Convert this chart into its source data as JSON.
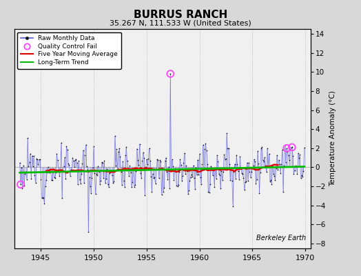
{
  "title": "BURRUS RANCH",
  "subtitle": "35.267 N, 111.533 W (United States)",
  "ylabel": "Temperature Anomaly (°C)",
  "watermark": "Berkeley Earth",
  "xlim": [
    1942.5,
    1970.5
  ],
  "ylim": [
    -8.5,
    14.5
  ],
  "yticks": [
    -8,
    -6,
    -4,
    -2,
    0,
    2,
    4,
    6,
    8,
    10,
    12,
    14
  ],
  "xticks": [
    1945,
    1950,
    1955,
    1960,
    1965,
    1970
  ],
  "bg_color": "#d8d8d8",
  "plot_bg_color": "#f0f0f0",
  "raw_color": "#5555dd",
  "dot_color": "#111111",
  "qc_fail_color": "#ff44ff",
  "moving_avg_color": "#dd0000",
  "trend_color": "#00bb00",
  "seed": 12,
  "n_months": 324,
  "start_year": 1943.0,
  "spike_year": 1957.25,
  "spike_val": 9.8,
  "dip_year": 1949.5,
  "dip_val": -6.8,
  "qc_years": [
    1943.1,
    1957.25,
    1968.25,
    1968.75
  ]
}
